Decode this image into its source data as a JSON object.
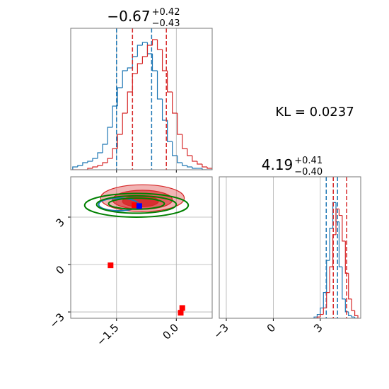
{
  "chart_data": [
    {
      "type": "histogram",
      "title": "−0.67",
      "title_upper": "+0.42",
      "title_lower": "−0.43",
      "bins": [
        -2.6,
        -2.475,
        -2.35,
        -2.225,
        -2.1,
        -1.975,
        -1.85,
        -1.725,
        -1.6,
        -1.475,
        -1.35,
        -1.225,
        -1.1,
        -0.975,
        -0.85,
        -0.725,
        -0.6,
        -0.475,
        -0.35,
        -0.225,
        -0.1,
        0.025,
        0.15,
        0.275,
        0.4,
        0.525,
        0.65,
        0.775,
        0.9
      ],
      "series": [
        {
          "color": "#1f77b4",
          "values": [
            2,
            3,
            5,
            6,
            8,
            12,
            18,
            30,
            45,
            58,
            70,
            72,
            80,
            88,
            90,
            82,
            70,
            50,
            35,
            20,
            10,
            5,
            3,
            2,
            1,
            1,
            0,
            0
          ],
          "quantiles": [
            -1.5,
            -0.62
          ]
        },
        {
          "color": "#d62728",
          "values": [
            0,
            0,
            0,
            1,
            2,
            3,
            5,
            8,
            15,
            25,
            40,
            55,
            68,
            75,
            80,
            88,
            92,
            85,
            70,
            55,
            40,
            25,
            15,
            10,
            6,
            4,
            2,
            1
          ],
          "quantiles": [
            -1.1,
            -0.25
          ]
        }
      ],
      "xlim": [
        -2.65,
        0.9
      ],
      "ylim": [
        0,
        100
      ],
      "xticks": [
        {
          "value": -1.5,
          "label": "−1.5"
        },
        {
          "value": 0,
          "label": "0.0"
        }
      ],
      "tick_labels": false,
      "grid": true
    },
    {
      "type": "contour",
      "xlim": [
        -2.65,
        0.9
      ],
      "ylim": [
        -3.4,
        5.55
      ],
      "xticks": [
        {
          "value": -1.5,
          "label": "−1.5"
        },
        {
          "value": 0,
          "label": "0.0"
        }
      ],
      "yticks": [
        {
          "value": 3,
          "label": "3"
        },
        {
          "value": 0,
          "label": "0"
        },
        {
          "value": -3,
          "label": "−3"
        }
      ],
      "tick_labels": true,
      "grid": true,
      "contours": [
        {
          "color": "#d62728",
          "filled": true,
          "opacity": 0.35,
          "cx": -0.85,
          "cy": 4.2,
          "rx": 1.05,
          "ry": 0.85
        },
        {
          "color": "#d62728",
          "filled": true,
          "opacity": 0.6,
          "cx": -0.85,
          "cy": 4.1,
          "rx": 0.75,
          "ry": 0.6
        },
        {
          "color": "#d62728",
          "filled": true,
          "opacity": 0.85,
          "cx": -0.9,
          "cy": 4.0,
          "rx": 0.45,
          "ry": 0.35
        },
        {
          "color": "#1f77b4",
          "filled": false,
          "opacity": 1,
          "cx": -1.45,
          "cy": 3.8,
          "rx": 0.5,
          "ry": 0.4
        },
        {
          "color": "#008000",
          "filled": false,
          "opacity": 1,
          "cx": -1.0,
          "cy": 3.75,
          "rx": 1.3,
          "ry": 0.75
        },
        {
          "color": "#008000",
          "filled": false,
          "opacity": 1,
          "cx": -1.0,
          "cy": 3.8,
          "rx": 1.0,
          "ry": 0.55
        },
        {
          "color": "#008000",
          "filled": false,
          "opacity": 1,
          "cx": -1.0,
          "cy": 3.85,
          "rx": 0.7,
          "ry": 0.35
        }
      ],
      "points": [
        {
          "color": "#ff0000",
          "x": -1.65,
          "y": -0.05
        },
        {
          "color": "#ff0000",
          "x": 0.15,
          "y": -2.75
        },
        {
          "color": "#ff0000",
          "x": 0.11,
          "y": -3.05
        },
        {
          "color": "#ff0000",
          "x": -1.05,
          "y": 3.75
        },
        {
          "color": "#0000ff",
          "x": -0.93,
          "y": 3.7
        }
      ]
    },
    {
      "type": "histogram",
      "title": "4.19",
      "title_upper": "+0.41",
      "title_lower": "−0.40",
      "bins": [
        2.6,
        2.8,
        3.0,
        3.2,
        3.4,
        3.6,
        3.8,
        4.0,
        4.2,
        4.4,
        4.6,
        4.8,
        5.0,
        5.2,
        5.4
      ],
      "series": [
        {
          "color": "#1f77b4",
          "values": [
            1,
            3,
            8,
            20,
            45,
            70,
            90,
            75,
            40,
            15,
            5,
            2,
            1,
            0
          ],
          "quantiles": [
            3.38,
            4.1
          ]
        },
        {
          "color": "#d62728",
          "values": [
            0,
            1,
            3,
            8,
            20,
            40,
            65,
            85,
            80,
            60,
            35,
            15,
            6,
            2
          ],
          "quantiles": [
            3.83,
            4.68
          ]
        }
      ],
      "xlim": [
        -3.45,
        5.58
      ],
      "ylim": [
        0,
        110
      ],
      "xticks": [
        {
          "value": -3,
          "label": "−3"
        },
        {
          "value": 0,
          "label": "0"
        },
        {
          "value": 3,
          "label": "3"
        }
      ],
      "tick_labels": true,
      "grid": true
    }
  ],
  "annotation": "KL = 0.0237"
}
